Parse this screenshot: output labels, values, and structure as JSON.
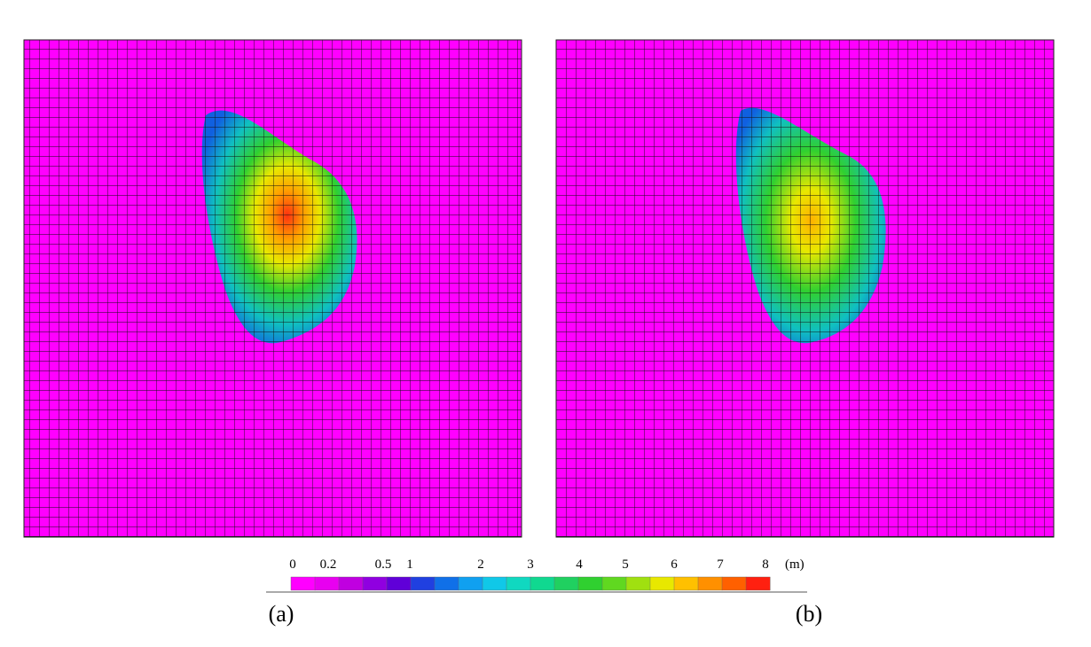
{
  "panels": [
    {
      "label": "(a)"
    },
    {
      "label": "(b)"
    }
  ],
  "legend": {
    "labels": [
      0,
      0.2,
      0.5,
      1,
      2,
      3,
      4,
      5,
      6,
      7,
      8
    ],
    "unit": "(m)"
  }
}
